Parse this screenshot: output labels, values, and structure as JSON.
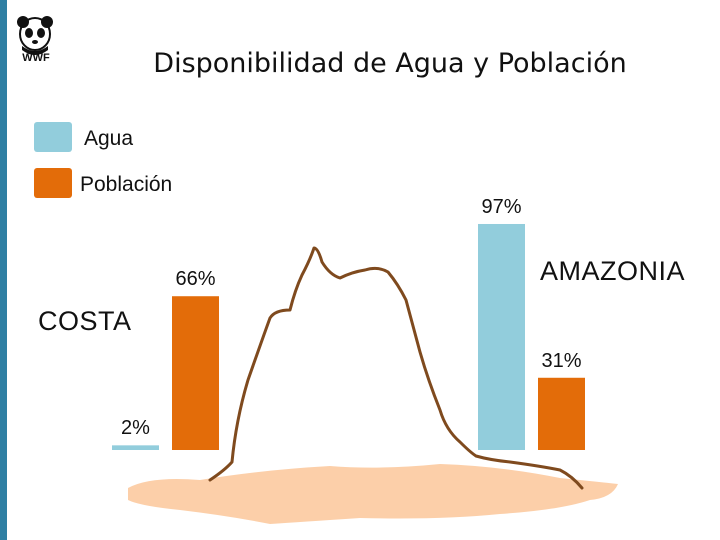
{
  "logo": {
    "text": "WWF",
    "icon": "panda-icon"
  },
  "chart_data": {
    "type": "bar",
    "title": "Disponibilidad de Agua y Población",
    "categories": [
      "COSTA",
      "AMAZONIA"
    ],
    "series": [
      {
        "name": "Agua",
        "color": "#92cddc",
        "values": [
          2,
          97
        ]
      },
      {
        "name": "Población",
        "color": "#e36c09",
        "values": [
          66,
          31
        ]
      }
    ],
    "data_labels": [
      [
        "2%",
        "66%"
      ],
      [
        "97%",
        "31%"
      ]
    ],
    "ylim": [
      0,
      100
    ],
    "grid": false,
    "legend_position": "top-left"
  }
}
